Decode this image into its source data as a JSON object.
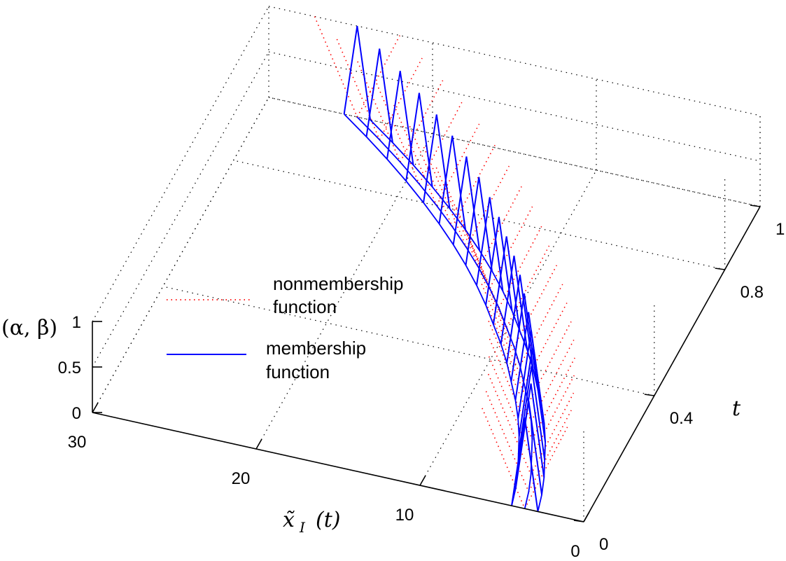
{
  "chart_data": {
    "type": "surface3d",
    "title": "",
    "xlabel": "x̃",
    "xlabel_sub": "I",
    "xlabel_arg": "(t)",
    "ylabel": "t",
    "zlabel": "(α, β)",
    "xlim": [
      0,
      30
    ],
    "ylim": [
      0,
      1
    ],
    "zlim": [
      0,
      1
    ],
    "x_ticks": [
      "0",
      "10",
      "20",
      "30"
    ],
    "y_ticks": [
      "0",
      "0.4",
      "0.8",
      "1"
    ],
    "z_ticks": [
      "0",
      "0.5",
      "1"
    ],
    "grid": true,
    "legend": {
      "placement": "center-left",
      "entries": [
        {
          "label_lines": [
            "nonmembership",
            "function"
          ],
          "color": "#ff0000",
          "style": "dotted"
        },
        {
          "label_lines": [
            "membership",
            "function"
          ],
          "color": "#0000ff",
          "style": "solid"
        }
      ]
    },
    "series": [
      {
        "name": "membership function",
        "color": "#0000ff",
        "style": "solid",
        "description": "triangular membership functions with peak value 1 at center x, spanning lower..upper, for each t",
        "t": [
          0,
          0.05,
          0.1,
          0.15,
          0.2,
          0.25,
          0.3,
          0.35,
          0.4,
          0.45,
          0.5,
          0.55,
          0.6,
          0.65,
          0.7,
          0.75,
          0.8,
          0.85,
          0.9,
          0.95,
          1.0
        ],
        "center": [
          3.6,
          3.9,
          4.3,
          4.8,
          5.3,
          5.9,
          6.6,
          7.4,
          8.2,
          9.1,
          10.1,
          11.1,
          12.2,
          13.4,
          14.7,
          16.1,
          17.6,
          19.2,
          20.9,
          22.7,
          24.6
        ],
        "spread": 0.8,
        "peak": 1
      },
      {
        "name": "nonmembership function",
        "color": "#ff0000",
        "style": "dotted",
        "description": "inverted triangular nonmembership functions, minimum 0 at center, 1 at the edges",
        "t": [
          0,
          0.05,
          0.1,
          0.15,
          0.2,
          0.25,
          0.3,
          0.35,
          0.4,
          0.45,
          0.5,
          0.55,
          0.6,
          0.65,
          0.7,
          0.75,
          0.8,
          0.85,
          0.9,
          0.95,
          1.0
        ],
        "center": [
          3.6,
          3.9,
          4.3,
          4.8,
          5.3,
          5.9,
          6.6,
          7.4,
          8.2,
          9.1,
          10.1,
          11.1,
          12.2,
          13.4,
          14.7,
          16.1,
          17.6,
          19.2,
          20.9,
          22.7,
          24.6
        ],
        "spread": 2.6,
        "trough": 0
      }
    ]
  }
}
